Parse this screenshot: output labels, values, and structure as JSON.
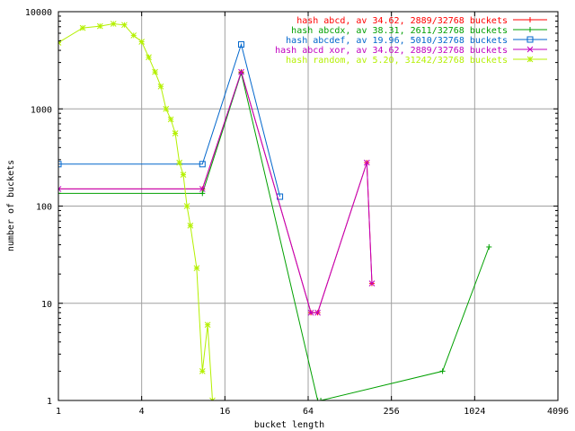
{
  "chart_data": {
    "type": "line",
    "xlabel": "bucket length",
    "ylabel": "number of buckets",
    "xscale": "log2",
    "yscale": "log10",
    "xlim": [
      1,
      4096
    ],
    "ylim": [
      1,
      10000
    ],
    "xticks": [
      1,
      4,
      16,
      64,
      256,
      1024,
      4096
    ],
    "yticks": [
      1,
      10,
      100,
      1000,
      10000
    ],
    "grid": true,
    "legend_position": "top-right",
    "series": [
      {
        "name": "hash abcd, av 34.62, 2889/32768 buckets",
        "color": "#ff0000",
        "marker": "plus",
        "points": [
          [
            1,
            150
          ],
          [
            11,
            150
          ],
          [
            21,
            2400
          ],
          [
            67,
            8
          ],
          [
            75,
            8
          ],
          [
            170,
            280
          ],
          [
            185,
            16
          ]
        ]
      },
      {
        "name": "hash abcdx, av 38.31, 2611/32768 buckets",
        "color": "#00a000",
        "marker": "plus",
        "points": [
          [
            1,
            135
          ],
          [
            11,
            135
          ],
          [
            21,
            2350
          ],
          [
            75,
            1
          ],
          [
            79,
            1
          ],
          [
            600,
            2
          ],
          [
            1300,
            38
          ]
        ]
      },
      {
        "name": "hash abcdef, av 19.96, 5010/32768 buckets",
        "color": "#0066cc",
        "marker": "square",
        "points": [
          [
            1,
            270
          ],
          [
            11,
            270
          ],
          [
            21,
            4600
          ],
          [
            40,
            125
          ]
        ]
      },
      {
        "name": "hash abcd xor, av 34.62, 2889/32768 buckets",
        "color": "#c000c0",
        "marker": "x",
        "points": [
          [
            1,
            150
          ],
          [
            11,
            150
          ],
          [
            21,
            2400
          ],
          [
            67,
            8
          ],
          [
            75,
            8
          ],
          [
            170,
            280
          ],
          [
            185,
            16
          ]
        ]
      },
      {
        "name": "hash random, av 5.20, 31242/32768 buckets",
        "color": "#b4f000",
        "marker": "star",
        "points": [
          [
            1,
            4800
          ],
          [
            1.5,
            6800
          ],
          [
            2,
            7100
          ],
          [
            2.5,
            7500
          ],
          [
            3,
            7300
          ],
          [
            3.5,
            5700
          ],
          [
            4,
            4900
          ],
          [
            4.5,
            3400
          ],
          [
            5,
            2400
          ],
          [
            5.5,
            1700
          ],
          [
            6,
            1000
          ],
          [
            6.5,
            780
          ],
          [
            7,
            560
          ],
          [
            7.5,
            280
          ],
          [
            8,
            210
          ],
          [
            8.5,
            100
          ],
          [
            9,
            63
          ],
          [
            10,
            23
          ],
          [
            11,
            2
          ],
          [
            12,
            6
          ],
          [
            13,
            1
          ]
        ]
      }
    ]
  }
}
